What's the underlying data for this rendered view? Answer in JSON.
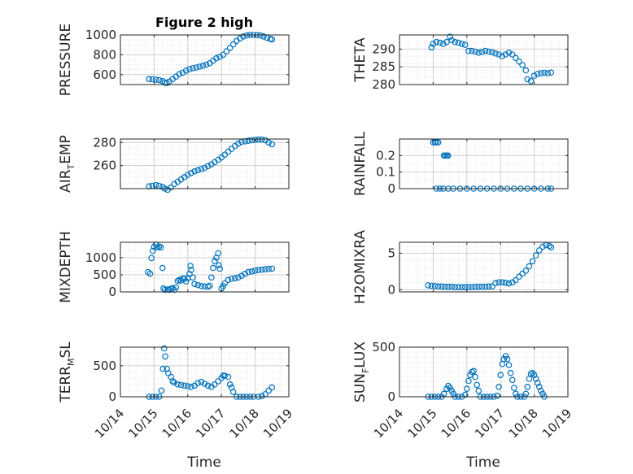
{
  "figure_title": "Figure 2 high",
  "colors": {
    "marker": "#0072BD",
    "axis": "#262626",
    "grid": "#d0d0d0",
    "minor_grid": "#e4e4e4"
  },
  "time_axis": {
    "xlim": [
      0,
      5
    ],
    "tick_labels": [
      "10/14",
      "10/15",
      "10/16",
      "10/17",
      "10/18",
      "10/19"
    ],
    "xlabel": "Time"
  },
  "chart_data": [
    {
      "type": "scatter",
      "id": "pressure",
      "ylabel": {
        "main": "PRESSURE",
        "sub": "",
        "post": ""
      },
      "ylim": [
        500,
        1000
      ],
      "yticks": [
        600,
        800,
        1000
      ],
      "title": "Figure 2 high",
      "points": [
        [
          0.85,
          555
        ],
        [
          0.95,
          553
        ],
        [
          1.05,
          550
        ],
        [
          1.15,
          545
        ],
        [
          1.25,
          535
        ],
        [
          1.32,
          520
        ],
        [
          1.38,
          515
        ],
        [
          1.45,
          530
        ],
        [
          1.55,
          555
        ],
        [
          1.65,
          580
        ],
        [
          1.75,
          605
        ],
        [
          1.85,
          620
        ],
        [
          1.95,
          640
        ],
        [
          2.05,
          655
        ],
        [
          2.15,
          665
        ],
        [
          2.25,
          672
        ],
        [
          2.35,
          680
        ],
        [
          2.45,
          690
        ],
        [
          2.55,
          700
        ],
        [
          2.65,
          715
        ],
        [
          2.75,
          740
        ],
        [
          2.85,
          765
        ],
        [
          2.95,
          780
        ],
        [
          3.05,
          800
        ],
        [
          3.15,
          835
        ],
        [
          3.25,
          870
        ],
        [
          3.35,
          905
        ],
        [
          3.45,
          940
        ],
        [
          3.55,
          965
        ],
        [
          3.65,
          985
        ],
        [
          3.75,
          995
        ],
        [
          3.85,
          1000
        ],
        [
          3.95,
          1000
        ],
        [
          4.05,
          998
        ],
        [
          4.15,
          995
        ],
        [
          4.25,
          985
        ],
        [
          4.35,
          972
        ],
        [
          4.45,
          960
        ],
        [
          4.5,
          955
        ]
      ]
    },
    {
      "type": "scatter",
      "id": "theta",
      "ylabel": {
        "main": "THETA",
        "sub": "",
        "post": ""
      },
      "ylim": [
        280,
        294
      ],
      "yticks": [
        280,
        285,
        290
      ],
      "points": [
        [
          0.95,
          290.5
        ],
        [
          1.0,
          291.5
        ],
        [
          1.1,
          292
        ],
        [
          1.2,
          291.8
        ],
        [
          1.3,
          291.5
        ],
        [
          1.4,
          292
        ],
        [
          1.5,
          293.5
        ],
        [
          1.55,
          292.5
        ],
        [
          1.65,
          292
        ],
        [
          1.75,
          291.8
        ],
        [
          1.85,
          291.5
        ],
        [
          1.95,
          291.2
        ],
        [
          2.05,
          289.5
        ],
        [
          2.15,
          289.5
        ],
        [
          2.25,
          289.3
        ],
        [
          2.35,
          289
        ],
        [
          2.45,
          289.2
        ],
        [
          2.55,
          289.5
        ],
        [
          2.65,
          289.3
        ],
        [
          2.75,
          289.1
        ],
        [
          2.85,
          288.8
        ],
        [
          2.95,
          288.5
        ],
        [
          3.05,
          288
        ],
        [
          3.15,
          288.5
        ],
        [
          3.25,
          289
        ],
        [
          3.35,
          288.5
        ],
        [
          3.45,
          287.5
        ],
        [
          3.55,
          286.5
        ],
        [
          3.65,
          285.5
        ],
        [
          3.75,
          284
        ],
        [
          3.8,
          281.5
        ],
        [
          3.9,
          281
        ],
        [
          4.0,
          282.5
        ],
        [
          4.1,
          283
        ],
        [
          4.2,
          283.2
        ],
        [
          4.3,
          283.3
        ],
        [
          4.4,
          283.2
        ],
        [
          4.5,
          283.4
        ]
      ]
    },
    {
      "type": "scatter",
      "id": "air-temp",
      "ylabel": {
        "main": "AIR",
        "sub": "T",
        "post": "EMP"
      },
      "ylim": [
        240,
        283
      ],
      "yticks": [
        260,
        280
      ],
      "points": [
        [
          0.85,
          242
        ],
        [
          0.95,
          242.5
        ],
        [
          1.05,
          243
        ],
        [
          1.15,
          242.5
        ],
        [
          1.25,
          241.5
        ],
        [
          1.32,
          240
        ],
        [
          1.4,
          239
        ],
        [
          1.5,
          241
        ],
        [
          1.6,
          244
        ],
        [
          1.7,
          246
        ],
        [
          1.8,
          248
        ],
        [
          1.9,
          250
        ],
        [
          2.0,
          252
        ],
        [
          2.1,
          253.5
        ],
        [
          2.2,
          255
        ],
        [
          2.3,
          256
        ],
        [
          2.4,
          257
        ],
        [
          2.5,
          258
        ],
        [
          2.6,
          259.5
        ],
        [
          2.7,
          261
        ],
        [
          2.8,
          263
        ],
        [
          2.9,
          265
        ],
        [
          3.0,
          267
        ],
        [
          3.1,
          269.5
        ],
        [
          3.2,
          272
        ],
        [
          3.3,
          274.5
        ],
        [
          3.4,
          277
        ],
        [
          3.5,
          279
        ],
        [
          3.6,
          280.5
        ],
        [
          3.7,
          281
        ],
        [
          3.8,
          281.5
        ],
        [
          3.9,
          282
        ],
        [
          4.0,
          282.3
        ],
        [
          4.1,
          282.5
        ],
        [
          4.2,
          282.5
        ],
        [
          4.3,
          282
        ],
        [
          4.4,
          280
        ],
        [
          4.5,
          278.5
        ]
      ]
    },
    {
      "type": "scatter",
      "id": "rainfall",
      "ylabel": {
        "main": "RAINFALL",
        "sub": "",
        "post": ""
      },
      "ylim": [
        0,
        0.3
      ],
      "yticks": [
        0,
        0.1,
        0.2
      ],
      "points": [
        [
          1.0,
          0.28
        ],
        [
          1.05,
          0.28
        ],
        [
          1.1,
          0.28
        ],
        [
          1.15,
          0.28
        ],
        [
          1.1,
          0
        ],
        [
          1.2,
          0
        ],
        [
          1.3,
          0
        ],
        [
          1.32,
          0.2
        ],
        [
          1.36,
          0.2
        ],
        [
          1.4,
          0.2
        ],
        [
          1.44,
          0.2
        ],
        [
          1.45,
          0
        ],
        [
          1.6,
          0
        ],
        [
          1.8,
          0
        ],
        [
          2.0,
          0
        ],
        [
          2.2,
          0
        ],
        [
          2.4,
          0
        ],
        [
          2.6,
          0
        ],
        [
          2.8,
          0
        ],
        [
          3.0,
          0
        ],
        [
          3.2,
          0
        ],
        [
          3.4,
          0
        ],
        [
          3.6,
          0
        ],
        [
          3.8,
          0
        ],
        [
          4.0,
          0
        ],
        [
          4.2,
          0
        ],
        [
          4.4,
          0
        ],
        [
          4.5,
          0
        ]
      ]
    },
    {
      "type": "scatter",
      "id": "mixdepth",
      "ylabel": {
        "main": "MIXDEPTH",
        "sub": "",
        "post": ""
      },
      "ylim": [
        0,
        1450
      ],
      "yticks": [
        0,
        500,
        1000
      ],
      "points": [
        [
          0.82,
          580
        ],
        [
          0.88,
          530
        ],
        [
          0.92,
          990
        ],
        [
          0.96,
          1200
        ],
        [
          1.0,
          1320
        ],
        [
          1.05,
          1380
        ],
        [
          1.1,
          1300
        ],
        [
          1.15,
          1330
        ],
        [
          1.2,
          1300
        ],
        [
          1.25,
          700
        ],
        [
          1.28,
          100
        ],
        [
          1.32,
          60
        ],
        [
          1.4,
          70
        ],
        [
          1.45,
          60
        ],
        [
          1.5,
          90
        ],
        [
          1.55,
          110
        ],
        [
          1.6,
          60
        ],
        [
          1.65,
          130
        ],
        [
          1.7,
          320
        ],
        [
          1.75,
          350
        ],
        [
          1.8,
          330
        ],
        [
          1.85,
          390
        ],
        [
          1.9,
          380
        ],
        [
          1.95,
          310
        ],
        [
          2.0,
          410
        ],
        [
          2.05,
          520
        ],
        [
          2.08,
          760
        ],
        [
          2.1,
          640
        ],
        [
          2.15,
          420
        ],
        [
          2.2,
          230
        ],
        [
          2.3,
          200
        ],
        [
          2.4,
          170
        ],
        [
          2.5,
          160
        ],
        [
          2.6,
          150
        ],
        [
          2.65,
          180
        ],
        [
          2.7,
          420
        ],
        [
          2.75,
          700
        ],
        [
          2.8,
          900
        ],
        [
          2.85,
          1000
        ],
        [
          2.9,
          1130
        ],
        [
          2.92,
          780
        ],
        [
          2.95,
          680
        ],
        [
          3.0,
          100
        ],
        [
          3.05,
          170
        ],
        [
          3.1,
          250
        ],
        [
          3.2,
          350
        ],
        [
          3.3,
          380
        ],
        [
          3.4,
          400
        ],
        [
          3.5,
          420
        ],
        [
          3.6,
          470
        ],
        [
          3.7,
          530
        ],
        [
          3.8,
          580
        ],
        [
          3.9,
          600
        ],
        [
          4.0,
          620
        ],
        [
          4.1,
          640
        ],
        [
          4.2,
          650
        ],
        [
          4.3,
          660
        ],
        [
          4.4,
          670
        ],
        [
          4.5,
          680
        ]
      ]
    },
    {
      "type": "scatter",
      "id": "h2omixra",
      "ylabel": {
        "main": "H2OMIXRA",
        "sub": "",
        "post": ""
      },
      "ylim": [
        -0.3,
        6.5
      ],
      "yticks": [
        0,
        5
      ],
      "points": [
        [
          0.85,
          0.6
        ],
        [
          0.95,
          0.55
        ],
        [
          1.05,
          0.5
        ],
        [
          1.15,
          0.45
        ],
        [
          1.25,
          0.45
        ],
        [
          1.35,
          0.4
        ],
        [
          1.45,
          0.4
        ],
        [
          1.55,
          0.4
        ],
        [
          1.65,
          0.35
        ],
        [
          1.75,
          0.35
        ],
        [
          1.85,
          0.35
        ],
        [
          1.95,
          0.35
        ],
        [
          2.05,
          0.35
        ],
        [
          2.15,
          0.35
        ],
        [
          2.25,
          0.4
        ],
        [
          2.35,
          0.4
        ],
        [
          2.45,
          0.4
        ],
        [
          2.55,
          0.4
        ],
        [
          2.65,
          0.45
        ],
        [
          2.75,
          0.45
        ],
        [
          2.85,
          0.9
        ],
        [
          2.95,
          1.0
        ],
        [
          3.05,
          1.0
        ],
        [
          3.15,
          0.95
        ],
        [
          3.25,
          0.85
        ],
        [
          3.35,
          1.0
        ],
        [
          3.45,
          1.3
        ],
        [
          3.55,
          1.8
        ],
        [
          3.65,
          2.2
        ],
        [
          3.75,
          2.6
        ],
        [
          3.85,
          3.2
        ],
        [
          3.95,
          3.9
        ],
        [
          4.05,
          4.7
        ],
        [
          4.15,
          5.4
        ],
        [
          4.25,
          5.9
        ],
        [
          4.35,
          6.1
        ],
        [
          4.45,
          6.0
        ],
        [
          4.5,
          5.8
        ]
      ]
    },
    {
      "type": "scatter",
      "id": "terr-msl",
      "ylabel": {
        "main": "TERR",
        "sub": "M",
        "post": "SL"
      },
      "ylim": [
        0,
        800
      ],
      "yticks": [
        0,
        500
      ],
      "points": [
        [
          0.85,
          0
        ],
        [
          0.95,
          0
        ],
        [
          1.05,
          0
        ],
        [
          1.15,
          0
        ],
        [
          1.22,
          100
        ],
        [
          1.26,
          450
        ],
        [
          1.3,
          780
        ],
        [
          1.33,
          650
        ],
        [
          1.38,
          450
        ],
        [
          1.42,
          380
        ],
        [
          1.5,
          320
        ],
        [
          1.55,
          250
        ],
        [
          1.6,
          230
        ],
        [
          1.7,
          200
        ],
        [
          1.8,
          190
        ],
        [
          1.9,
          180
        ],
        [
          2.0,
          170
        ],
        [
          2.1,
          160
        ],
        [
          2.2,
          180
        ],
        [
          2.3,
          220
        ],
        [
          2.4,
          240
        ],
        [
          2.5,
          210
        ],
        [
          2.6,
          180
        ],
        [
          2.7,
          160
        ],
        [
          2.8,
          200
        ],
        [
          2.9,
          250
        ],
        [
          3.0,
          300
        ],
        [
          3.05,
          340
        ],
        [
          3.1,
          340
        ],
        [
          3.2,
          320
        ],
        [
          3.25,
          200
        ],
        [
          3.3,
          150
        ],
        [
          3.35,
          80
        ],
        [
          3.45,
          0
        ],
        [
          3.55,
          0
        ],
        [
          3.65,
          0
        ],
        [
          3.75,
          0
        ],
        [
          3.85,
          0
        ],
        [
          3.95,
          0
        ],
        [
          4.1,
          0
        ],
        [
          4.2,
          10
        ],
        [
          4.3,
          40
        ],
        [
          4.4,
          100
        ],
        [
          4.5,
          150
        ]
      ]
    },
    {
      "type": "scatter",
      "id": "sun-flux",
      "ylabel": {
        "main": "SUN",
        "sub": "F",
        "post": "LUX"
      },
      "ylim": [
        0,
        500
      ],
      "yticks": [
        0,
        500
      ],
      "points": [
        [
          0.85,
          0
        ],
        [
          0.95,
          0
        ],
        [
          1.05,
          0
        ],
        [
          1.15,
          0
        ],
        [
          1.25,
          0
        ],
        [
          1.32,
          30
        ],
        [
          1.4,
          80
        ],
        [
          1.45,
          110
        ],
        [
          1.5,
          90
        ],
        [
          1.55,
          60
        ],
        [
          1.6,
          30
        ],
        [
          1.65,
          0
        ],
        [
          1.75,
          0
        ],
        [
          1.85,
          0
        ],
        [
          1.95,
          20
        ],
        [
          2.0,
          80
        ],
        [
          2.05,
          160
        ],
        [
          2.1,
          220
        ],
        [
          2.15,
          250
        ],
        [
          2.2,
          260
        ],
        [
          2.25,
          200
        ],
        [
          2.3,
          120
        ],
        [
          2.35,
          60
        ],
        [
          2.4,
          0
        ],
        [
          2.5,
          0
        ],
        [
          2.6,
          0
        ],
        [
          2.7,
          0
        ],
        [
          2.8,
          0
        ],
        [
          2.9,
          10
        ],
        [
          2.95,
          100
        ],
        [
          3.0,
          220
        ],
        [
          3.05,
          330
        ],
        [
          3.1,
          380
        ],
        [
          3.15,
          410
        ],
        [
          3.2,
          380
        ],
        [
          3.25,
          320
        ],
        [
          3.3,
          240
        ],
        [
          3.35,
          170
        ],
        [
          3.4,
          90
        ],
        [
          3.45,
          30
        ],
        [
          3.5,
          0
        ],
        [
          3.6,
          0
        ],
        [
          3.7,
          0
        ],
        [
          3.75,
          30
        ],
        [
          3.8,
          100
        ],
        [
          3.85,
          180
        ],
        [
          3.9,
          230
        ],
        [
          3.95,
          240
        ],
        [
          4.0,
          220
        ],
        [
          4.05,
          180
        ],
        [
          4.1,
          140
        ],
        [
          4.15,
          100
        ],
        [
          4.2,
          60
        ],
        [
          4.25,
          30
        ],
        [
          4.3,
          0
        ]
      ]
    }
  ]
}
